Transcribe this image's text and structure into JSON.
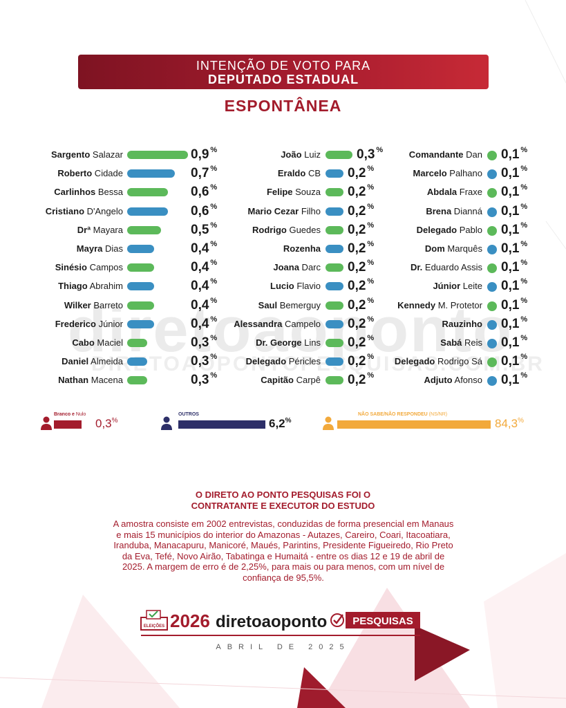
{
  "header": {
    "line1": "INTENÇÃO DE VOTO PARA",
    "line2": "DEPUTADO ESTADUAL",
    "subtitle": "ESPONTÂNEA"
  },
  "watermark": {
    "main": "diretoaoponto",
    "sub": "DIRETOAOPONTOPESQUISAS.COM.BR"
  },
  "colors": {
    "green": "#5cb95a",
    "blue": "#3a8fc2",
    "red": "#a31c2c",
    "navy": "#2d2f68",
    "orange": "#f2a93b"
  },
  "chart_data": {
    "type": "bar",
    "title": "ESPONTÂNEA",
    "unit": "%",
    "columns": [
      [
        {
          "first": "Sargento",
          "rest": "Salazar",
          "value": 0.9,
          "label": "0,9",
          "color": "green"
        },
        {
          "first": "Roberto",
          "rest": "Cidade",
          "value": 0.7,
          "label": "0,7",
          "color": "blue"
        },
        {
          "first": "Carlinhos",
          "rest": "Bessa",
          "value": 0.6,
          "label": "0,6",
          "color": "green"
        },
        {
          "first": "Cristiano",
          "rest": "D'Angelo",
          "value": 0.6,
          "label": "0,6",
          "color": "blue"
        },
        {
          "first": "Drª",
          "rest": "Mayara",
          "value": 0.5,
          "label": "0,5",
          "color": "green"
        },
        {
          "first": "Mayra",
          "rest": "Dias",
          "value": 0.4,
          "label": "0,4",
          "color": "blue"
        },
        {
          "first": "Sinésio",
          "rest": "Campos",
          "value": 0.4,
          "label": "0,4",
          "color": "green"
        },
        {
          "first": "Thiago",
          "rest": "Abrahim",
          "value": 0.4,
          "label": "0,4",
          "color": "blue"
        },
        {
          "first": "Wilker",
          "rest": "Barreto",
          "value": 0.4,
          "label": "0,4",
          "color": "green"
        },
        {
          "first": "Frederico",
          "rest": "Júnior",
          "value": 0.4,
          "label": "0,4",
          "color": "blue"
        },
        {
          "first": "Cabo",
          "rest": "Maciel",
          "value": 0.3,
          "label": "0,3",
          "color": "green"
        },
        {
          "first": "Daniel",
          "rest": "Almeida",
          "value": 0.3,
          "label": "0,3",
          "color": "blue"
        },
        {
          "first": "Nathan",
          "rest": "Macena",
          "value": 0.3,
          "label": "0,3",
          "color": "green"
        }
      ],
      [
        {
          "first": "João",
          "rest": "Luiz",
          "value": 0.3,
          "label": "0,3",
          "color": "green"
        },
        {
          "first": "Eraldo",
          "rest": "CB",
          "value": 0.2,
          "label": "0,2",
          "color": "blue"
        },
        {
          "first": "Felipe",
          "rest": "Souza",
          "value": 0.2,
          "label": "0,2",
          "color": "green"
        },
        {
          "first": "Mario Cezar",
          "rest": "Filho",
          "value": 0.2,
          "label": "0,2",
          "color": "blue"
        },
        {
          "first": "Rodrigo",
          "rest": "Guedes",
          "value": 0.2,
          "label": "0,2",
          "color": "green"
        },
        {
          "first": "Rozenha",
          "rest": "",
          "value": 0.2,
          "label": "0,2",
          "color": "blue"
        },
        {
          "first": "Joana",
          "rest": "Darc",
          "value": 0.2,
          "label": "0,2",
          "color": "green"
        },
        {
          "first": "Lucio",
          "rest": "Flavio",
          "value": 0.2,
          "label": "0,2",
          "color": "blue"
        },
        {
          "first": "Saul",
          "rest": "Bemerguy",
          "value": 0.2,
          "label": "0,2",
          "color": "green"
        },
        {
          "first": "Alessandra",
          "rest": "Campelo",
          "value": 0.2,
          "label": "0,2",
          "color": "blue"
        },
        {
          "first": "Dr. George",
          "rest": "Lins",
          "value": 0.2,
          "label": "0,2",
          "color": "green"
        },
        {
          "first": "Delegado",
          "rest": "Péricles",
          "value": 0.2,
          "label": "0,2",
          "color": "blue"
        },
        {
          "first": "Capitão",
          "rest": "Carpê",
          "value": 0.2,
          "label": "0,2",
          "color": "green"
        }
      ],
      [
        {
          "first": "Comandante",
          "rest": "Dan",
          "value": 0.1,
          "label": "0,1",
          "color": "green"
        },
        {
          "first": "Marcelo",
          "rest": "Palhano",
          "value": 0.1,
          "label": "0,1",
          "color": "blue"
        },
        {
          "first": "Abdala",
          "rest": "Fraxe",
          "value": 0.1,
          "label": "0,1",
          "color": "green"
        },
        {
          "first": "Brena",
          "rest": "Dianná",
          "value": 0.1,
          "label": "0,1",
          "color": "blue"
        },
        {
          "first": "Delegado",
          "rest": "Pablo",
          "value": 0.1,
          "label": "0,1",
          "color": "green"
        },
        {
          "first": "Dom",
          "rest": "Marquês",
          "value": 0.1,
          "label": "0,1",
          "color": "blue"
        },
        {
          "first": "Dr.",
          "rest": "Eduardo Assis",
          "value": 0.1,
          "label": "0,1",
          "color": "green"
        },
        {
          "first": "Júnior",
          "rest": "Leite",
          "value": 0.1,
          "label": "0,1",
          "color": "blue"
        },
        {
          "first": "Kennedy",
          "rest": "M. Protetor",
          "value": 0.1,
          "label": "0,1",
          "color": "green"
        },
        {
          "first": "Rauzinho",
          "rest": "",
          "value": 0.1,
          "label": "0,1",
          "color": "blue"
        },
        {
          "first": "Sabá",
          "rest": "Reis",
          "value": 0.1,
          "label": "0,1",
          "color": "blue"
        },
        {
          "first": "Delegado",
          "rest": "Rodrigo Sá",
          "value": 0.1,
          "label": "0,1",
          "color": "green"
        },
        {
          "first": "Adjuto",
          "rest": "Afonso",
          "value": 0.1,
          "label": "0,1",
          "color": "blue"
        }
      ]
    ],
    "summary": [
      {
        "label_bold": "Branco e",
        "label_rest": " Nulo",
        "value": 0.3,
        "display": "0,3",
        "color": "red"
      },
      {
        "label_bold": "OUTROS",
        "label_rest": "",
        "value": 6.2,
        "display": "6,2",
        "color": "navy"
      },
      {
        "label_bold": "NÃO SABE/NÃO RESPONDEU",
        "label_rest": " (NS/NR)",
        "value": 84.3,
        "display": "84,3",
        "color": "orange"
      }
    ]
  },
  "methodology": {
    "title_line1": "O DIRETO AO PONTO PESQUISAS FOI O",
    "title_line2": "CONTRATANTE E EXECUTOR DO ESTUDO",
    "text": "A amostra consiste em 2002 entrevistas, conduzidas de forma presencial em Manaus e mais 15 municípios do interior do Amazonas - Autazes, Careiro, Coari, Itacoatiara, Iranduba, Manacapuru, Manicoré, Maués, Parintins, Presidente Figueiredo, Rio Preto da Eva, Tefé, Novo Airão, Tabatinga e Humaitá - entre os dias 12 e 19 de abril de 2025. A margem de erro é de 2,25%, para mais ou para menos, com um nível de confiança de 95,5%."
  },
  "footer": {
    "badge": "ELEIÇÕES",
    "year": "2026",
    "brand": "diretoaoponto",
    "pesquisas": "PESQUISAS",
    "date": "ABRIL DE 2025"
  }
}
